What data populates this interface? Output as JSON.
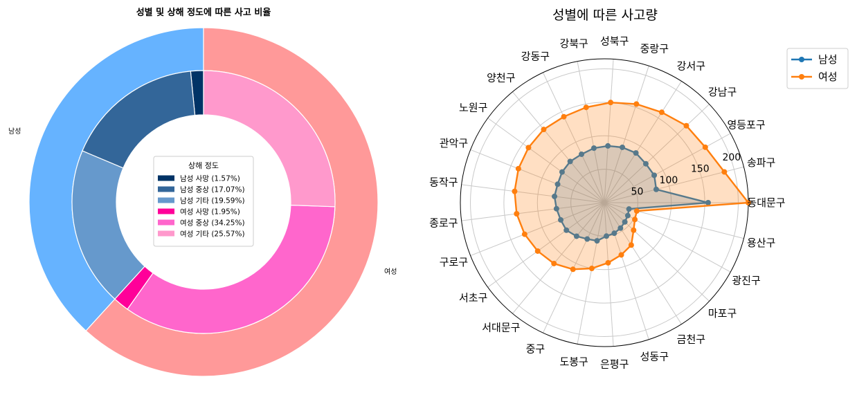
{
  "chart_data": [
    {
      "type": "pie",
      "variant": "nested-donut",
      "title": "성별 및 상해 정도에 따른 사고 비율",
      "outer": {
        "labels": [
          "남성",
          "여성"
        ],
        "values": [
          38.23,
          61.77
        ],
        "colors": [
          "#66b3ff",
          "#ff9999"
        ]
      },
      "inner": {
        "labels": [
          "남성 사망",
          "남성 중상",
          "남성 기타",
          "여성 사망",
          "여성 중상",
          "여성 기타"
        ],
        "values": [
          1.57,
          17.07,
          19.59,
          1.95,
          34.25,
          25.57
        ],
        "colors": [
          "#003366",
          "#336699",
          "#6699cc",
          "#ff0099",
          "#ff66cc",
          "#ff99cc"
        ]
      },
      "legend": {
        "title": "상해 정도",
        "placement": "center",
        "entries": [
          "남성 사망 (1.57%)",
          "남성 중상 (17.07%)",
          "남성 기타 (19.59%)",
          "여성 사망 (1.95%)",
          "여성 중상 (34.25%)",
          "여성 기타 (25.57%)"
        ]
      }
    },
    {
      "type": "radar",
      "title": "성별에 따른 사고량",
      "categories": [
        "동대문구",
        "송파구",
        "영등포구",
        "강남구",
        "강서구",
        "중랑구",
        "성북구",
        "강북구",
        "강동구",
        "양천구",
        "노원구",
        "관악구",
        "동작구",
        "종로구",
        "구로구",
        "서초구",
        "서대문구",
        "중구",
        "도봉구",
        "은평구",
        "성동구",
        "금천구",
        "마포구",
        "광진구",
        "용산구"
      ],
      "series": [
        {
          "name": "남성",
          "color": "#1f77b4",
          "fill": false,
          "values": [
            155,
            80,
            85,
            85,
            88,
            87,
            85,
            83,
            80,
            80,
            78,
            75,
            75,
            72,
            70,
            70,
            65,
            60,
            58,
            50,
            48,
            45,
            42,
            40,
            38
          ]
        },
        {
          "name": "여성",
          "color": "#ff7f0e",
          "fill": true,
          "values": [
            215,
            185,
            172,
            168,
            160,
            155,
            150,
            145,
            142,
            142,
            140,
            138,
            135,
            132,
            128,
            123,
            118,
            110,
            100,
            90,
            82,
            75,
            60,
            52,
            50
          ]
        }
      ],
      "rlim": [
        0,
        215
      ],
      "rticks": [
        "50",
        "100",
        "150",
        "200"
      ],
      "grid": true,
      "legend": {
        "placement": "top-right"
      }
    }
  ]
}
